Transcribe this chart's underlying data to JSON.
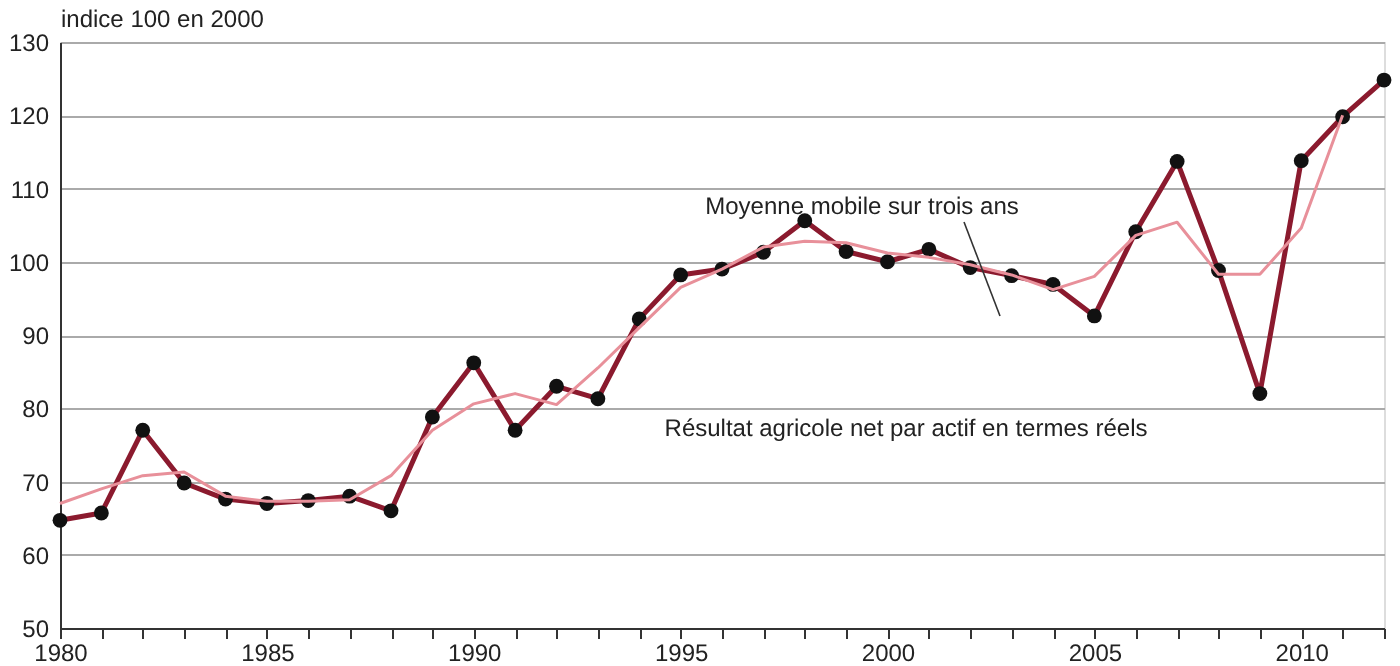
{
  "chart_data": {
    "type": "line",
    "ylabel": "indice 100 en 2000",
    "x": [
      1980,
      1981,
      1982,
      1983,
      1984,
      1985,
      1986,
      1987,
      1988,
      1989,
      1990,
      1991,
      1992,
      1993,
      1994,
      1995,
      1996,
      1997,
      1998,
      1999,
      2000,
      2001,
      2002,
      2003,
      2004,
      2005,
      2006,
      2007,
      2008,
      2009,
      2010,
      2011,
      2012
    ],
    "series": [
      {
        "name": "Résultat agricole net par actif en termes réels",
        "color": "#8b1a2e",
        "values": [
          64.7,
          65.7,
          77,
          69.8,
          67.6,
          67,
          67.4,
          68,
          66,
          78.8,
          86.2,
          77,
          83,
          81.3,
          92.2,
          98.2,
          99,
          101.3,
          105.6,
          101.4,
          100,
          101.7,
          99.2,
          98.1,
          96.9,
          92.6,
          104.1,
          113.7,
          98.8,
          82,
          113.8,
          119.8,
          124.8
        ]
      },
      {
        "name": "Moyenne mobile sur trois ans",
        "color": "#e8909a",
        "marker": "none",
        "values": [
          67,
          69,
          70.8,
          71.3,
          68,
          67.3,
          67.3,
          67.5,
          70.8,
          77,
          80.6,
          82,
          80.5,
          85.5,
          91,
          96.5,
          99,
          102,
          102.8,
          102.6,
          101.2,
          100.6,
          99.6,
          98.2,
          96.2,
          98,
          103.6,
          105.4,
          98.3,
          98.3,
          104.6,
          120,
          null
        ]
      }
    ],
    "xlim": [
      1980,
      2012
    ],
    "xticks": [
      1980,
      {
        "value": 1981,
        "label": null
      },
      {
        "value": 1982,
        "label": null
      },
      {
        "value": 1983,
        "label": null
      },
      {
        "value": 1984,
        "label": null
      },
      1985,
      {
        "value": 1986,
        "label": null
      },
      {
        "value": 1987,
        "label": null
      },
      {
        "value": 1988,
        "label": null
      },
      {
        "value": 1989,
        "label": null
      },
      1990,
      {
        "value": 1991,
        "label": null
      },
      {
        "value": 1992,
        "label": null
      },
      {
        "value": 1993,
        "label": null
      },
      {
        "value": 1994,
        "label": null
      },
      1995,
      {
        "value": 1996,
        "label": null
      },
      {
        "value": 1997,
        "label": null
      },
      {
        "value": 1998,
        "label": null
      },
      {
        "value": 1999,
        "label": null
      },
      2000,
      {
        "value": 2001,
        "label": null
      },
      {
        "value": 2002,
        "label": null
      },
      {
        "value": 2003,
        "label": null
      },
      {
        "value": 2004,
        "label": null
      },
      2005,
      {
        "value": 2006,
        "label": null
      },
      {
        "value": 2007,
        "label": null
      },
      {
        "value": 2008,
        "label": null
      },
      {
        "value": 2009,
        "label": null
      },
      2010,
      {
        "value": 2011,
        "label": null
      },
      {
        "value": 2012,
        "label": null
      }
    ],
    "ylim": [
      50,
      130
    ],
    "yticks": [
      50,
      60,
      70,
      80,
      90,
      100,
      110,
      120,
      130
    ],
    "grid": "y",
    "marker": "circle",
    "line_style": "solid",
    "legend": false
  }
}
